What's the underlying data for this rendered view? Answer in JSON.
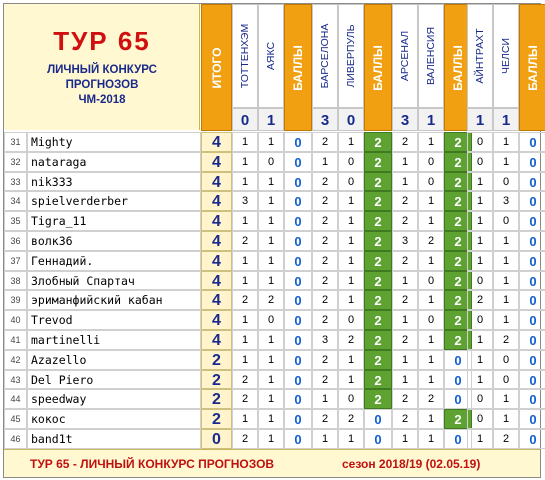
{
  "title": {
    "main": "ТУР 65",
    "line1": "ЛИЧНЫЙ КОНКУРС",
    "line2": "ПРОГНОЗОВ",
    "line3": "ЧМ-2018"
  },
  "header": {
    "itogo": "ИТОГО",
    "balls": "БАЛЛЫ",
    "teams": [
      "ТОТТЕНХЭМ",
      "АЯКС",
      "БАРСЕЛОНА",
      "ЛИВЕРПУЛЬ",
      "АРСЕНАЛ",
      "ВАЛЕНСИЯ",
      "АЙНТРАХТ",
      "ЧЕЛСИ"
    ],
    "scores": [
      "0",
      "1",
      "3",
      "0",
      "3",
      "1",
      "1",
      "1"
    ]
  },
  "rows": [
    {
      "n": "31",
      "name": "Mighty",
      "total": "4",
      "m": [
        [
          "1",
          "1",
          "0"
        ],
        [
          "2",
          "1",
          "2"
        ],
        [
          "2",
          "1",
          "2"
        ],
        [
          "0",
          "1",
          "0"
        ]
      ]
    },
    {
      "n": "32",
      "name": "nataraga",
      "total": "4",
      "m": [
        [
          "1",
          "0",
          "0"
        ],
        [
          "1",
          "0",
          "2"
        ],
        [
          "1",
          "0",
          "2"
        ],
        [
          "0",
          "1",
          "0"
        ]
      ]
    },
    {
      "n": "33",
      "name": "nik333",
      "total": "4",
      "m": [
        [
          "1",
          "1",
          "0"
        ],
        [
          "2",
          "0",
          "2"
        ],
        [
          "1",
          "0",
          "2"
        ],
        [
          "1",
          "0",
          "0"
        ]
      ]
    },
    {
      "n": "34",
      "name": "spielverderber",
      "total": "4",
      "m": [
        [
          "3",
          "1",
          "0"
        ],
        [
          "2",
          "1",
          "2"
        ],
        [
          "2",
          "1",
          "2"
        ],
        [
          "1",
          "3",
          "0"
        ]
      ]
    },
    {
      "n": "35",
      "name": "Tigra_11",
      "total": "4",
      "m": [
        [
          "1",
          "1",
          "0"
        ],
        [
          "2",
          "1",
          "2"
        ],
        [
          "2",
          "1",
          "2"
        ],
        [
          "1",
          "0",
          "0"
        ]
      ]
    },
    {
      "n": "36",
      "name": "волк36",
      "total": "4",
      "m": [
        [
          "2",
          "1",
          "0"
        ],
        [
          "2",
          "1",
          "2"
        ],
        [
          "3",
          "2",
          "2"
        ],
        [
          "1",
          "1",
          "0"
        ]
      ]
    },
    {
      "n": "37",
      "name": "Геннадий.",
      "total": "4",
      "m": [
        [
          "1",
          "1",
          "0"
        ],
        [
          "2",
          "1",
          "2"
        ],
        [
          "2",
          "1",
          "2"
        ],
        [
          "1",
          "1",
          "0"
        ]
      ]
    },
    {
      "n": "38",
      "name": "Злобный Спартач",
      "total": "4",
      "m": [
        [
          "1",
          "1",
          "0"
        ],
        [
          "2",
          "1",
          "2"
        ],
        [
          "1",
          "0",
          "2"
        ],
        [
          "0",
          "1",
          "0"
        ]
      ]
    },
    {
      "n": "39",
      "name": "эриманфийский кабан",
      "total": "4",
      "m": [
        [
          "2",
          "2",
          "0"
        ],
        [
          "2",
          "1",
          "2"
        ],
        [
          "2",
          "1",
          "2"
        ],
        [
          "2",
          "1",
          "0"
        ]
      ]
    },
    {
      "n": "40",
      "name": "Trevod",
      "total": "4",
      "m": [
        [
          "1",
          "0",
          "0"
        ],
        [
          "2",
          "0",
          "2"
        ],
        [
          "1",
          "0",
          "2"
        ],
        [
          "0",
          "1",
          "0"
        ]
      ]
    },
    {
      "n": "41",
      "name": "martinelli",
      "total": "4",
      "m": [
        [
          "1",
          "1",
          "0"
        ],
        [
          "3",
          "2",
          "2"
        ],
        [
          "2",
          "1",
          "2"
        ],
        [
          "1",
          "2",
          "0"
        ]
      ]
    },
    {
      "n": "42",
      "name": "Azazello",
      "total": "2",
      "m": [
        [
          "1",
          "1",
          "0"
        ],
        [
          "2",
          "1",
          "2"
        ],
        [
          "1",
          "1",
          "0"
        ],
        [
          "1",
          "0",
          "0"
        ]
      ]
    },
    {
      "n": "43",
      "name": "Del Piero",
      "total": "2",
      "m": [
        [
          "2",
          "1",
          "0"
        ],
        [
          "2",
          "1",
          "2"
        ],
        [
          "1",
          "1",
          "0"
        ],
        [
          "1",
          "0",
          "0"
        ]
      ]
    },
    {
      "n": "44",
      "name": "speedway",
      "total": "2",
      "m": [
        [
          "2",
          "1",
          "0"
        ],
        [
          "1",
          "0",
          "2"
        ],
        [
          "2",
          "2",
          "0"
        ],
        [
          "0",
          "1",
          "0"
        ]
      ]
    },
    {
      "n": "45",
      "name": "кокос",
      "total": "2",
      "m": [
        [
          "1",
          "1",
          "0"
        ],
        [
          "2",
          "2",
          "0"
        ],
        [
          "2",
          "1",
          "2"
        ],
        [
          "0",
          "1",
          "0"
        ]
      ]
    },
    {
      "n": "46",
      "name": "band1t",
      "total": "0",
      "m": [
        [
          "2",
          "1",
          "0"
        ],
        [
          "1",
          "1",
          "0"
        ],
        [
          "1",
          "1",
          "0"
        ],
        [
          "1",
          "2",
          "0"
        ]
      ]
    }
  ],
  "footer": {
    "left": "ТУР 65 - ЛИЧНЫЙ КОНКУРС ПРОГНОЗОВ",
    "right": "сезон 2018/19  (02.05.19)"
  },
  "colors": {
    "accent_red": "#d01010",
    "header_orange": "#f0a010",
    "ball_green": "#5ea232",
    "text_blue": "#1a2a8c",
    "cream": "#fff8d0"
  }
}
